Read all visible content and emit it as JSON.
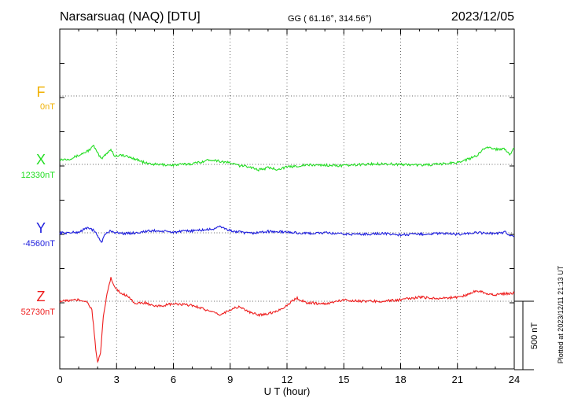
{
  "header": {
    "station": "Narsarsuaq (NAQ)  [DTU]",
    "coords": "GG ( 61.16°, 314.56°)",
    "date": "2023/12/05"
  },
  "side_note": "Plotted at 2023/12/11 21:13 UT",
  "chart_data": {
    "type": "line",
    "xlabel": "U T (hour)",
    "xlim": [
      0,
      24
    ],
    "xticks": [
      0,
      3,
      6,
      9,
      12,
      15,
      18,
      21,
      24
    ],
    "xtick_labels": [
      "0",
      "3",
      "6",
      "9",
      "12",
      "15",
      "18",
      "21",
      "24"
    ],
    "scale_bar": {
      "label": "500 nT",
      "value": 500
    },
    "series": [
      {
        "name": "F",
        "baseline_label": "0nT",
        "color": "#f0b000",
        "values": []
      },
      {
        "name": "X",
        "baseline_label": "12330nT",
        "color": "#22dd22",
        "x": [
          0,
          0.5,
          1.0,
          1.5,
          1.8,
          2.0,
          2.2,
          2.5,
          2.7,
          2.9,
          3.2,
          3.6,
          4.0,
          4.5,
          5.0,
          6.0,
          7.0,
          8.0,
          9.0,
          9.5,
          10.0,
          10.5,
          11.0,
          11.5,
          12.0,
          13.0,
          14.0,
          15.0,
          16.0,
          17.0,
          18.0,
          19.0,
          20.0,
          21.0,
          21.5,
          22.0,
          22.5,
          23.0,
          23.5,
          23.8,
          24.0
        ],
        "values": [
          35,
          40,
          65,
          100,
          135,
          80,
          40,
          85,
          110,
          60,
          70,
          55,
          40,
          10,
          0,
          -5,
          5,
          35,
          10,
          -10,
          -15,
          -40,
          -25,
          -35,
          -20,
          -5,
          -5,
          -10,
          0,
          5,
          0,
          -5,
          0,
          15,
          35,
          60,
          130,
          110,
          115,
          70,
          120
        ]
      },
      {
        "name": "Y",
        "baseline_label": "-4560nT",
        "color": "#1c1cdd",
        "x": [
          0,
          0.5,
          1.0,
          1.5,
          1.8,
          2.0,
          2.2,
          2.4,
          2.7,
          3.0,
          3.5,
          4.0,
          4.5,
          5.0,
          6.0,
          7.0,
          8.0,
          8.5,
          9.0,
          10.0,
          11.0,
          12.0,
          13.0,
          14.0,
          15.0,
          16.0,
          17.0,
          18.0,
          19.0,
          20.0,
          21.0,
          22.0,
          23.0,
          23.5,
          24.0
        ],
        "values": [
          0,
          0,
          5,
          40,
          15,
          -20,
          -70,
          -10,
          15,
          0,
          -5,
          0,
          10,
          15,
          5,
          15,
          25,
          45,
          15,
          -5,
          10,
          5,
          -5,
          0,
          -10,
          -10,
          -5,
          -15,
          -10,
          -5,
          -10,
          0,
          -5,
          5,
          -30
        ]
      },
      {
        "name": "Z",
        "baseline_label": "52730nT",
        "color": "#ee1c1c",
        "x": [
          0,
          0.5,
          1.0,
          1.4,
          1.7,
          1.9,
          2.0,
          2.15,
          2.3,
          2.5,
          2.7,
          2.9,
          3.2,
          3.6,
          4.0,
          4.5,
          5.0,
          6.0,
          7.0,
          7.5,
          8.0,
          8.5,
          9.0,
          9.5,
          10.0,
          10.5,
          11.0,
          11.5,
          12.0,
          12.5,
          13.0,
          14.0,
          15.0,
          16.0,
          17.0,
          18.0,
          19.0,
          20.0,
          21.0,
          21.5,
          22.0,
          22.5,
          23.0,
          23.5,
          24.0
        ],
        "values": [
          0,
          5,
          10,
          0,
          -60,
          -350,
          -450,
          -380,
          -120,
          60,
          170,
          100,
          60,
          40,
          -20,
          -10,
          -40,
          -20,
          -30,
          -50,
          -80,
          -100,
          -60,
          -40,
          -80,
          -100,
          -90,
          -70,
          -30,
          25,
          -10,
          -20,
          10,
          0,
          0,
          10,
          30,
          20,
          30,
          45,
          80,
          60,
          45,
          55,
          60
        ]
      }
    ]
  }
}
